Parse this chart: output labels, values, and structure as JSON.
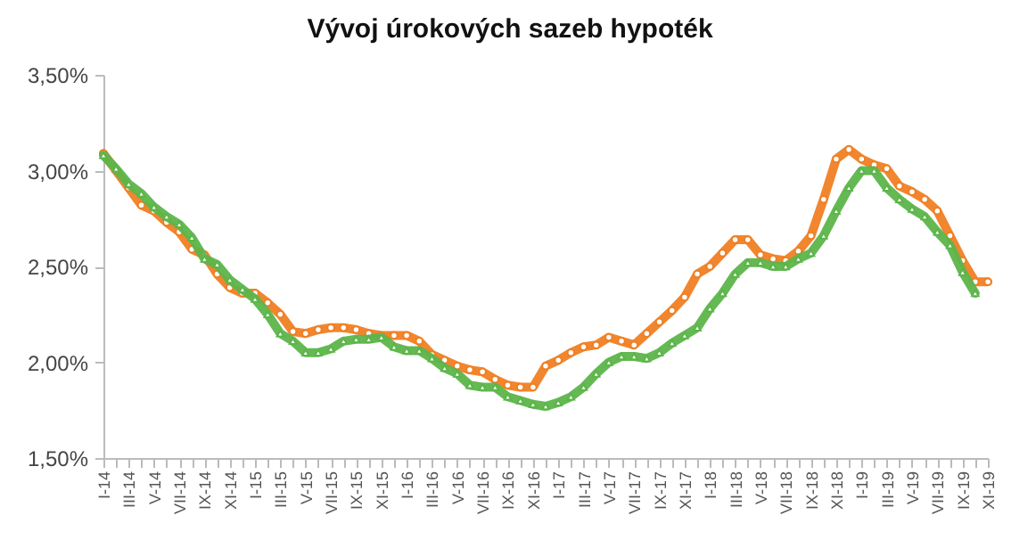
{
  "chart_data": {
    "type": "line",
    "title": "Vývoj úrokových sazeb hypoték",
    "categories": [
      "I-14",
      null,
      "III-14",
      null,
      "V-14",
      null,
      "VII-14",
      null,
      "IX-14",
      null,
      "XI-14",
      null,
      "I-15",
      null,
      "III-15",
      null,
      "V-15",
      null,
      "VII-15",
      null,
      "IX-15",
      null,
      "XI-15",
      null,
      "I-16",
      null,
      "III-16",
      null,
      "V-16",
      null,
      "VII-16",
      null,
      "IX-16",
      null,
      "XI-16",
      null,
      "I-17",
      null,
      "III-17",
      null,
      "V-17",
      null,
      "VII-17",
      null,
      "IX-17",
      null,
      "XI-17",
      null,
      "I-18",
      null,
      "III-18",
      null,
      "V-18",
      null,
      "VII-18",
      null,
      "IX-18",
      null,
      "XI-18",
      null,
      "I-19",
      null,
      "III-19",
      null,
      "V-19",
      null,
      "VII-19",
      null,
      "IX-19",
      null,
      "XI-19"
    ],
    "series": [
      {
        "color": "#f07f24",
        "marker": "circle",
        "values": [
          3.09,
          3.0,
          2.91,
          2.82,
          2.79,
          2.73,
          2.68,
          2.59,
          2.56,
          2.46,
          2.39,
          2.36,
          2.36,
          2.31,
          2.25,
          2.16,
          2.15,
          2.17,
          2.18,
          2.18,
          2.17,
          2.15,
          2.14,
          2.14,
          2.14,
          2.11,
          2.04,
          2.01,
          1.98,
          1.96,
          1.95,
          1.91,
          1.88,
          1.87,
          1.87,
          1.98,
          2.01,
          2.05,
          2.08,
          2.09,
          2.13,
          2.11,
          2.09,
          2.15,
          2.21,
          2.27,
          2.34,
          2.46,
          2.5,
          2.57,
          2.64,
          2.64,
          2.56,
          2.54,
          2.53,
          2.58,
          2.66,
          2.85,
          3.06,
          3.11,
          3.06,
          3.03,
          3.01,
          2.92,
          2.89,
          2.85,
          2.79,
          2.66,
          2.53,
          2.42,
          2.42
        ]
      },
      {
        "color": "#5cb54a",
        "marker": "triangle",
        "values": [
          3.08,
          3.01,
          2.93,
          2.88,
          2.81,
          2.76,
          2.72,
          2.65,
          2.54,
          2.51,
          2.43,
          2.38,
          2.33,
          2.25,
          2.15,
          2.11,
          2.05,
          2.05,
          2.07,
          2.11,
          2.12,
          2.12,
          2.13,
          2.08,
          2.06,
          2.06,
          2.02,
          1.97,
          1.94,
          1.88,
          1.87,
          1.87,
          1.82,
          1.8,
          1.78,
          1.77,
          1.79,
          1.82,
          1.87,
          1.94,
          2.0,
          2.03,
          2.03,
          2.02,
          2.05,
          2.1,
          2.14,
          2.18,
          2.28,
          2.36,
          2.46,
          2.52,
          2.52,
          2.5,
          2.5,
          2.54,
          2.57,
          2.66,
          2.79,
          2.91,
          3.0,
          3.0,
          2.91,
          2.85,
          2.8,
          2.76,
          2.68,
          2.61,
          2.47,
          2.36,
          null
        ]
      }
    ],
    "ylim": [
      1.5,
      3.5
    ],
    "yticks": [
      {
        "value": 1.5,
        "label": "1,50%"
      },
      {
        "value": 2.0,
        "label": "2,00%"
      },
      {
        "value": 2.5,
        "label": "2,50%"
      },
      {
        "value": 3.0,
        "label": "3,00%"
      },
      {
        "value": 3.5,
        "label": "3,50%"
      }
    ],
    "grid": false
  }
}
